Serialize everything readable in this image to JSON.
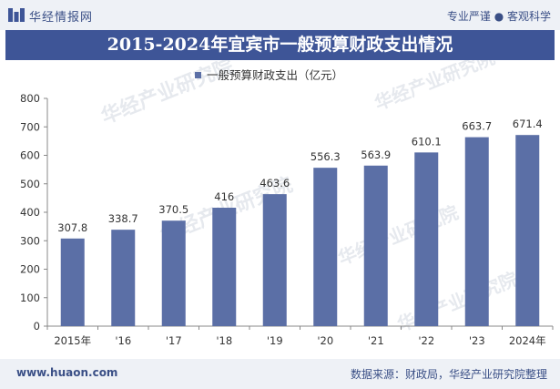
{
  "header": {
    "brand": "华经情报网",
    "slogan": "专业严谨 ● 客观科学"
  },
  "title": "2015-2024年宜宾市一般预算财政支出情况",
  "footer": {
    "website": "www.huaon.com",
    "source": "数据来源：财政局，华经产业研究院整理"
  },
  "watermark": "华经产业研究院",
  "colors": {
    "bar": "#5b6fa6",
    "title_bg": "#3e5597",
    "band_bg": "#eef1f6"
  },
  "chart_data": {
    "type": "bar",
    "categories": [
      "2015年",
      "'16",
      "'17",
      "'18",
      "'19",
      "'20",
      "'21",
      "'22",
      "'23",
      "2024年"
    ],
    "series": [
      {
        "name": "一般预算财政支出（亿元）",
        "values": [
          307.8,
          338.7,
          370.5,
          416,
          463.6,
          556.3,
          563.9,
          610.1,
          663.7,
          671.4
        ],
        "labels": [
          "307.8",
          "338.7",
          "370.5",
          "416",
          "463.6",
          "556.3",
          "563.9",
          "610.1",
          "663.7",
          "671.4"
        ]
      }
    ],
    "ylim": [
      0,
      800
    ],
    "yticks": [
      0,
      100,
      200,
      300,
      400,
      500,
      600,
      700,
      800
    ],
    "grid": false,
    "legend": "top-center"
  }
}
